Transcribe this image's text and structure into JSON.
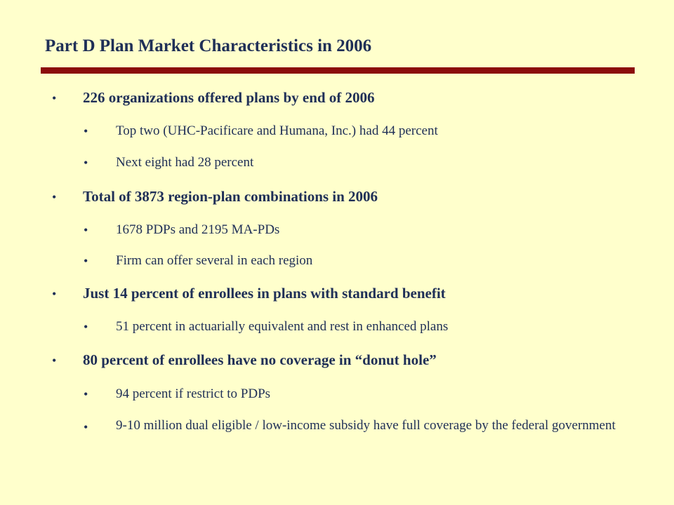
{
  "slide": {
    "title": "Part D Plan Market Characteristics in 2006",
    "bullet_glyph": "•",
    "colors": {
      "background": "#FFFFCC",
      "text": "#1F2F57",
      "rule": "#8B0C0C"
    },
    "items": [
      {
        "level": 1,
        "text": "226 organizations offered plans by end of 2006"
      },
      {
        "level": 2,
        "text": "Top two (UHC-Pacificare and Humana, Inc.) had 44 percent"
      },
      {
        "level": 2,
        "text": "Next eight had 28 percent"
      },
      {
        "level": 1,
        "text": "Total of 3873 region-plan combinations in 2006"
      },
      {
        "level": 2,
        "text": "1678 PDPs and 2195 MA-PDs"
      },
      {
        "level": 2,
        "text": "Firm can offer several in each region"
      },
      {
        "level": 1,
        "text": "Just 14 percent of enrollees in plans with standard benefit"
      },
      {
        "level": 2,
        "text": "51 percent in actuarially equivalent and rest in enhanced plans"
      },
      {
        "level": 1,
        "text": "80 percent of enrollees have no coverage in “donut hole”"
      },
      {
        "level": 2,
        "text": "94 percent if restrict to PDPs"
      },
      {
        "level": 2,
        "text": "9-10 million dual eligible / low-income subsidy have full coverage by the federal government"
      }
    ]
  }
}
